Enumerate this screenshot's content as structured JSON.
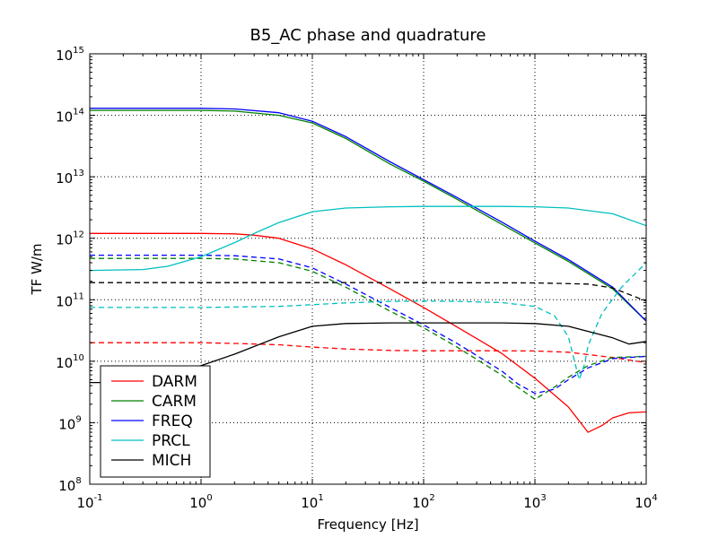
{
  "chart_data": {
    "type": "line",
    "title": "B5_AC phase and quadrature",
    "xlabel": "Frequency [Hz]",
    "ylabel": "TF W/m",
    "xscale": "log",
    "yscale": "log",
    "xlim": [
      0.1,
      10000
    ],
    "ylim": [
      100000000,
      1000000000000000
    ],
    "grid": true,
    "legend_position": "lower-left",
    "x_ticks": [
      {
        "base": "10",
        "exp": "-1",
        "value": 0.1
      },
      {
        "base": "10",
        "exp": "0",
        "value": 1
      },
      {
        "base": "10",
        "exp": "1",
        "value": 10
      },
      {
        "base": "10",
        "exp": "2",
        "value": 100
      },
      {
        "base": "10",
        "exp": "3",
        "value": 1000
      },
      {
        "base": "10",
        "exp": "4",
        "value": 10000
      }
    ],
    "y_ticks": [
      {
        "base": "10",
        "exp": "8",
        "value": 100000000
      },
      {
        "base": "10",
        "exp": "9",
        "value": 1000000000
      },
      {
        "base": "10",
        "exp": "10",
        "value": 10000000000
      },
      {
        "base": "10",
        "exp": "11",
        "value": 100000000000
      },
      {
        "base": "10",
        "exp": "12",
        "value": 1000000000000
      },
      {
        "base": "10",
        "exp": "13",
        "value": 10000000000000
      },
      {
        "base": "10",
        "exp": "14",
        "value": 100000000000000
      },
      {
        "base": "10",
        "exp": "15",
        "value": 1000000000000000
      }
    ],
    "legend": [
      "DARM",
      "CARM",
      "FREQ",
      "PRCL",
      "MICH"
    ],
    "series": [
      {
        "name": "DARM",
        "color": "#ff0000",
        "dash": false,
        "x": [
          0.1,
          0.5,
          1,
          2,
          3,
          5,
          10,
          20,
          50,
          100,
          200,
          500,
          1000,
          2000,
          3000,
          4000,
          5000,
          7000,
          10000
        ],
        "y": [
          1200000000000.0,
          1200000000000.0,
          1200000000000.0,
          1180000000000.0,
          1120000000000.0,
          1000000000000.0,
          670000000000.0,
          370000000000.0,
          150000000000.0,
          75000000000.0,
          36000000000.0,
          13500000000.0,
          5300000000.0,
          1800000000.0,
          700000000.0,
          900000000.0,
          1200000000.0,
          1450000000.0,
          1500000000.0
        ]
      },
      {
        "name": "",
        "color": "#ff0000",
        "dash": true,
        "x": [
          0.1,
          0.5,
          1,
          2,
          5,
          10,
          20,
          50,
          100,
          200,
          500,
          1000,
          2000,
          5000,
          10000
        ],
        "y": [
          20000000000.0,
          20000000000.0,
          20000000000.0,
          19500000000.0,
          18500000000.0,
          17000000000.0,
          15800000000.0,
          15000000000.0,
          14800000000.0,
          14800000000.0,
          14800000000.0,
          14700000000.0,
          14000000000.0,
          11500000000.0,
          9500000000.0
        ]
      },
      {
        "name": "CARM",
        "color": "#008000",
        "dash": false,
        "x": [
          0.1,
          0.5,
          1,
          2,
          5,
          10,
          20,
          50,
          100,
          200,
          500,
          1000,
          2000,
          5000,
          10000
        ],
        "y": [
          120000000000000.0,
          120000000000000.0,
          120000000000000.0,
          117000000000000.0,
          100000000000000.0,
          75000000000000.0,
          42000000000000.0,
          16000000000000.0,
          8500000000000.0,
          4300000000000.0,
          1700000000000.0,
          840000000000.0,
          420000000000.0,
          150000000000.0,
          45000000000.0
        ]
      },
      {
        "name": "",
        "color": "#008000",
        "dash": true,
        "x": [
          0.1,
          0.5,
          1,
          2,
          5,
          10,
          20,
          50,
          100,
          200,
          500,
          700,
          1000,
          1500,
          2000,
          3000,
          5000,
          10000
        ],
        "y": [
          470000000000.0,
          470000000000.0,
          470000000000.0,
          460000000000.0,
          400000000000.0,
          290000000000.0,
          160000000000.0,
          65000000000.0,
          35000000000.0,
          17000000000.0,
          6000000000.0,
          3800000000.0,
          2400000000.0,
          3800000000.0,
          5500000000.0,
          8500000000.0,
          11500000000.0,
          12000000000.0
        ]
      },
      {
        "name": "FREQ",
        "color": "#0000ff",
        "dash": false,
        "x": [
          0.1,
          0.5,
          1,
          2,
          5,
          10,
          20,
          50,
          100,
          200,
          500,
          1000,
          2000,
          5000,
          10000
        ],
        "y": [
          130000000000000.0,
          130000000000000.0,
          130000000000000.0,
          127000000000000.0,
          110000000000000.0,
          80000000000000.0,
          45000000000000.0,
          17500000000000.0,
          9000000000000.0,
          4600000000000.0,
          1850000000000.0,
          900000000000.0,
          450000000000.0,
          160000000000.0,
          45000000000.0
        ]
      },
      {
        "name": "",
        "color": "#0000ff",
        "dash": true,
        "x": [
          0.1,
          0.5,
          1,
          2,
          5,
          10,
          20,
          50,
          100,
          200,
          500,
          700,
          1000,
          1500,
          2000,
          3000,
          5000,
          10000
        ],
        "y": [
          530000000000.0,
          530000000000.0,
          530000000000.0,
          520000000000.0,
          460000000000.0,
          330000000000.0,
          180000000000.0,
          75000000000.0,
          39000000000.0,
          19500000000.0,
          7000000000.0,
          4300000000.0,
          3000000000.0,
          3500000000.0,
          5000000000.0,
          7800000000.0,
          11000000000.0,
          12000000000.0
        ]
      },
      {
        "name": "PRCL",
        "color": "#00bfbf",
        "dash": false,
        "x": [
          0.1,
          0.3,
          0.5,
          1,
          2,
          3,
          5,
          10,
          20,
          50,
          100,
          200,
          500,
          1000,
          2000,
          5000,
          10000
        ],
        "y": [
          300000000000.0,
          310000000000.0,
          350000000000.0,
          500000000000.0,
          850000000000.0,
          1200000000000.0,
          1800000000000.0,
          2700000000000.0,
          3100000000000.0,
          3250000000000.0,
          3300000000000.0,
          3300000000000.0,
          3300000000000.0,
          3250000000000.0,
          3100000000000.0,
          2500000000000.0,
          1600000000000.0
        ]
      },
      {
        "name": "",
        "color": "#00bfbf",
        "dash": true,
        "x": [
          0.1,
          1,
          5,
          10,
          20,
          50,
          100,
          200,
          500,
          1000,
          1500,
          2000,
          2500,
          2800,
          3000,
          4000,
          6000,
          10000
        ],
        "y": [
          75000000000.0,
          75000000000.0,
          78000000000.0,
          83000000000.0,
          89000000000.0,
          94000000000.0,
          95000000000.0,
          94000000000.0,
          90000000000.0,
          78000000000.0,
          55000000000.0,
          25000000000.0,
          5000000000.0,
          9000000000.0,
          18000000000.0,
          60000000000.0,
          160000000000.0,
          400000000000.0
        ]
      },
      {
        "name": "MICH",
        "color": "#000000",
        "dash": false,
        "x": [
          0.1,
          0.2,
          0.3,
          0.5,
          1,
          2,
          5,
          10,
          20,
          50,
          100,
          200,
          500,
          1000,
          2000,
          5000,
          7000,
          10000
        ],
        "y": [
          4500000000.0,
          4500000000.0,
          5500000000.0,
          6500000000.0,
          8500000000.0,
          13000000000.0,
          25000000000.0,
          37000000000.0,
          41000000000.0,
          42000000000.0,
          42000000000.0,
          42000000000.0,
          42000000000.0,
          41000000000.0,
          37000000000.0,
          24000000000.0,
          19000000000.0,
          21000000000.0
        ]
      },
      {
        "name": "",
        "color": "#000000",
        "dash": true,
        "x": [
          0.1,
          1,
          10,
          100,
          1000,
          3000,
          5000,
          10000
        ],
        "y": [
          190000000000.0,
          190000000000.0,
          190000000000.0,
          190000000000.0,
          188000000000.0,
          180000000000.0,
          155000000000.0,
          95000000000.0
        ]
      }
    ]
  }
}
